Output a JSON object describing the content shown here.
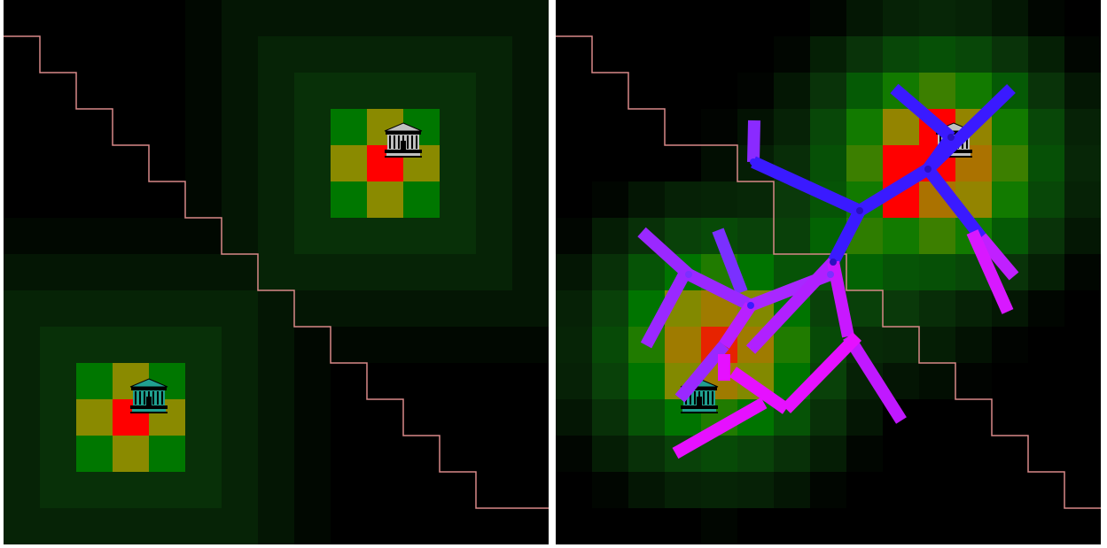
{
  "scene": {
    "grid_size": 15,
    "colors": {
      "background": "#000000",
      "divider": "#ffffff",
      "border_line": "#d88888",
      "tile_base_green": "#003300",
      "tile_mid_green": "#007700",
      "tile_olive": "#8a8a00",
      "tile_orange": "#b86800",
      "tile_red": "#ff0000",
      "unit_blue": "#3a1aff",
      "unit_violet": "#9a28ff",
      "unit_magenta": "#e610ff",
      "building_teal": "#20a090",
      "building_gray": "#c0c0c0"
    },
    "panels": [
      {
        "id": "before",
        "buildings": [
          {
            "icon": "bank-building-icon",
            "team": "teal"
          },
          {
            "icon": "bank-building-icon",
            "team": "gray"
          }
        ]
      },
      {
        "id": "after",
        "buildings": [
          {
            "icon": "bank-building-icon",
            "team": "teal"
          },
          {
            "icon": "bank-building-icon",
            "team": "gray"
          }
        ]
      }
    ]
  }
}
